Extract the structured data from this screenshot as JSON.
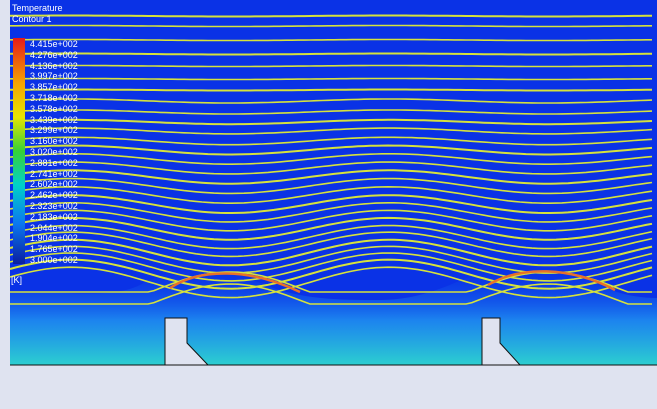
{
  "legend": {
    "title": "Temperature",
    "subtitle": "Contour 1",
    "unit": "[K]",
    "labels": [
      "4.415e+002",
      "4.276e+002",
      "4.136e+002",
      "3.997e+002",
      "3.857e+002",
      "3.718e+002",
      "3.578e+002",
      "3.439e+002",
      "3.299e+002",
      "3.160e+002",
      "3.020e+002",
      "2.881e+002",
      "2.741e+002",
      "2.602e+002",
      "2.462e+002",
      "2.323e+002",
      "2.183e+002",
      "2.044e+002",
      "1.904e+002",
      "1.765e+002",
      "3.000e+002"
    ]
  },
  "colors": {
    "field": "#0a32e6",
    "near_wall": "#1e8cf0",
    "wall": "#dfe3f0",
    "streamline": "#d6e23c",
    "hot": "#e8702a"
  }
}
